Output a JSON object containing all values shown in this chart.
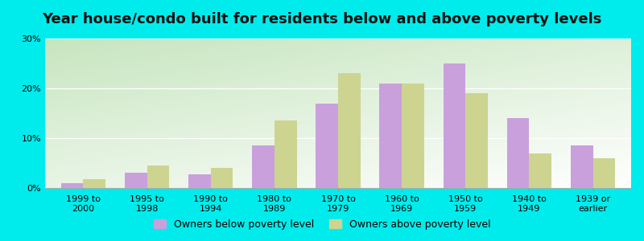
{
  "title": "Year house/condo built for residents below and above poverty levels",
  "categories": [
    "1999 to\n2000",
    "1995 to\n1998",
    "1990 to\n1994",
    "1980 to\n1989",
    "1970 to\n1979",
    "1960 to\n1969",
    "1950 to\n1959",
    "1940 to\n1949",
    "1939 or\nearlier"
  ],
  "below_poverty": [
    1.0,
    3.0,
    2.8,
    8.5,
    17.0,
    21.0,
    25.0,
    14.0,
    8.5
  ],
  "above_poverty": [
    1.8,
    4.5,
    4.0,
    13.5,
    23.0,
    21.0,
    19.0,
    7.0,
    6.0
  ],
  "below_color": "#c9a0dc",
  "above_color": "#ccd490",
  "background_color": "#00ecec",
  "ylim": [
    0,
    30
  ],
  "yticks": [
    0,
    10,
    20,
    30
  ],
  "ytick_labels": [
    "0%",
    "10%",
    "20%",
    "30%"
  ],
  "legend_below": "Owners below poverty level",
  "legend_above": "Owners above poverty level",
  "title_fontsize": 13,
  "tick_fontsize": 8,
  "legend_fontsize": 9,
  "bar_width": 0.35
}
